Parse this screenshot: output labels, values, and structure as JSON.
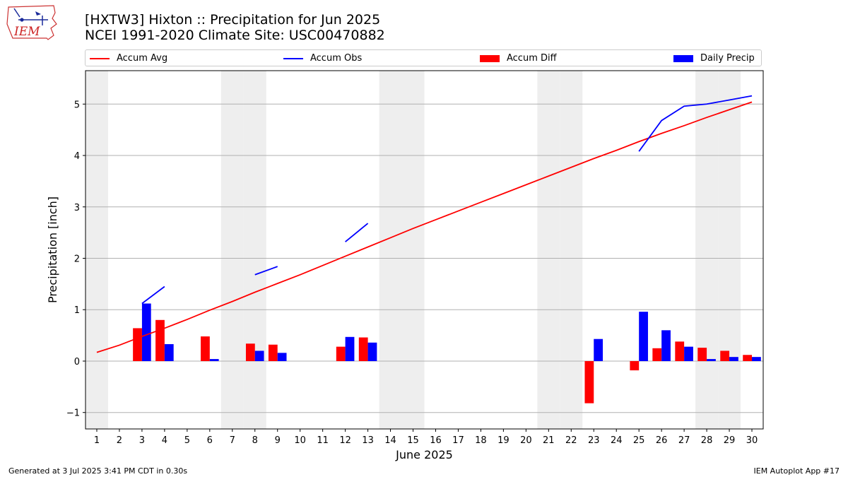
{
  "header": {
    "title_line1": "[HXTW3] Hixton :: Precipitation for Jun 2025",
    "title_line2": "NCEI 1991-2020 Climate Site: USC00470882"
  },
  "logo": {
    "text": "IEM"
  },
  "footer": {
    "left": "Generated at 3 Jul 2025 3:41 PM CDT in 0.30s",
    "right": "IEM Autoplot App #17"
  },
  "colors": {
    "avg": "#ff0000",
    "obs": "#0000ff",
    "diff": "#ff0000",
    "daily": "#0000ff",
    "weekend": "#eeeeee",
    "grid": "#b0b0b0"
  },
  "legend": [
    {
      "label": "Accum Avg",
      "kind": "line",
      "color": "#ff0000"
    },
    {
      "label": "Accum Obs",
      "kind": "line",
      "color": "#0000ff"
    },
    {
      "label": "Accum Diff",
      "kind": "box",
      "color": "#ff0000"
    },
    {
      "label": "Daily Precip",
      "kind": "box",
      "color": "#0000ff"
    }
  ],
  "chart_data": {
    "type": "bar",
    "title": "[HXTW3] Hixton :: Precipitation for Jun 2025",
    "subtitle": "NCEI 1991-2020 Climate Site: USC00470882",
    "xlabel": "June 2025",
    "ylabel": "Precipitation [inch]",
    "ylim": [
      -1.32,
      5.65
    ],
    "yticks": [
      -1,
      0,
      1,
      2,
      3,
      4,
      5
    ],
    "ytick_labels": [
      "−1",
      "0",
      "1",
      "2",
      "3",
      "4",
      "5"
    ],
    "grid": true,
    "legend_position": "top",
    "days": [
      1,
      2,
      3,
      4,
      5,
      6,
      7,
      8,
      9,
      10,
      11,
      12,
      13,
      14,
      15,
      16,
      17,
      18,
      19,
      20,
      21,
      22,
      23,
      24,
      25,
      26,
      27,
      28,
      29,
      30
    ],
    "weekend_days": [
      1,
      7,
      8,
      14,
      15,
      21,
      22,
      28,
      29
    ],
    "series": [
      {
        "name": "Accum Avg",
        "type": "line",
        "values": [
          0.17,
          0.31,
          0.48,
          0.64,
          0.81,
          0.99,
          1.16,
          1.34,
          1.51,
          1.68,
          1.86,
          2.04,
          2.22,
          2.4,
          2.58,
          2.75,
          2.92,
          3.09,
          3.26,
          3.43,
          3.6,
          3.77,
          3.94,
          4.1,
          4.27,
          4.43,
          4.58,
          4.74,
          4.89,
          5.04
        ]
      },
      {
        "name": "Accum Obs",
        "type": "line",
        "segments": [
          {
            "days": [
              3,
              4
            ],
            "values": [
              1.12,
              1.45
            ]
          },
          {
            "days": [
              8,
              9
            ],
            "values": [
              1.68,
              1.84
            ]
          },
          {
            "days": [
              12,
              13
            ],
            "values": [
              2.32,
              2.68
            ]
          },
          {
            "days": [
              25,
              26,
              27,
              28,
              29,
              30
            ],
            "values": [
              4.08,
              4.68,
              4.96,
              5.0,
              5.08,
              5.16
            ]
          }
        ]
      },
      {
        "name": "Accum Diff",
        "type": "bar",
        "points": [
          {
            "day": 3,
            "value": 0.64
          },
          {
            "day": 4,
            "value": 0.8
          },
          {
            "day": 6,
            "value": 0.48
          },
          {
            "day": 8,
            "value": 0.34
          },
          {
            "day": 9,
            "value": 0.32
          },
          {
            "day": 12,
            "value": 0.28
          },
          {
            "day": 13,
            "value": 0.46
          },
          {
            "day": 23,
            "value": -0.82
          },
          {
            "day": 25,
            "value": -0.18
          },
          {
            "day": 26,
            "value": 0.25
          },
          {
            "day": 27,
            "value": 0.38
          },
          {
            "day": 28,
            "value": 0.26
          },
          {
            "day": 29,
            "value": 0.2
          },
          {
            "day": 30,
            "value": 0.12
          }
        ]
      },
      {
        "name": "Daily Precip",
        "type": "bar",
        "points": [
          {
            "day": 3,
            "value": 1.12
          },
          {
            "day": 4,
            "value": 0.33
          },
          {
            "day": 6,
            "value": 0.04
          },
          {
            "day": 8,
            "value": 0.2
          },
          {
            "day": 9,
            "value": 0.16
          },
          {
            "day": 12,
            "value": 0.47
          },
          {
            "day": 13,
            "value": 0.36
          },
          {
            "day": 23,
            "value": 0.43
          },
          {
            "day": 25,
            "value": 0.96
          },
          {
            "day": 26,
            "value": 0.6
          },
          {
            "day": 27,
            "value": 0.28
          },
          {
            "day": 28,
            "value": 0.04
          },
          {
            "day": 29,
            "value": 0.08
          },
          {
            "day": 30,
            "value": 0.08
          }
        ]
      }
    ]
  }
}
